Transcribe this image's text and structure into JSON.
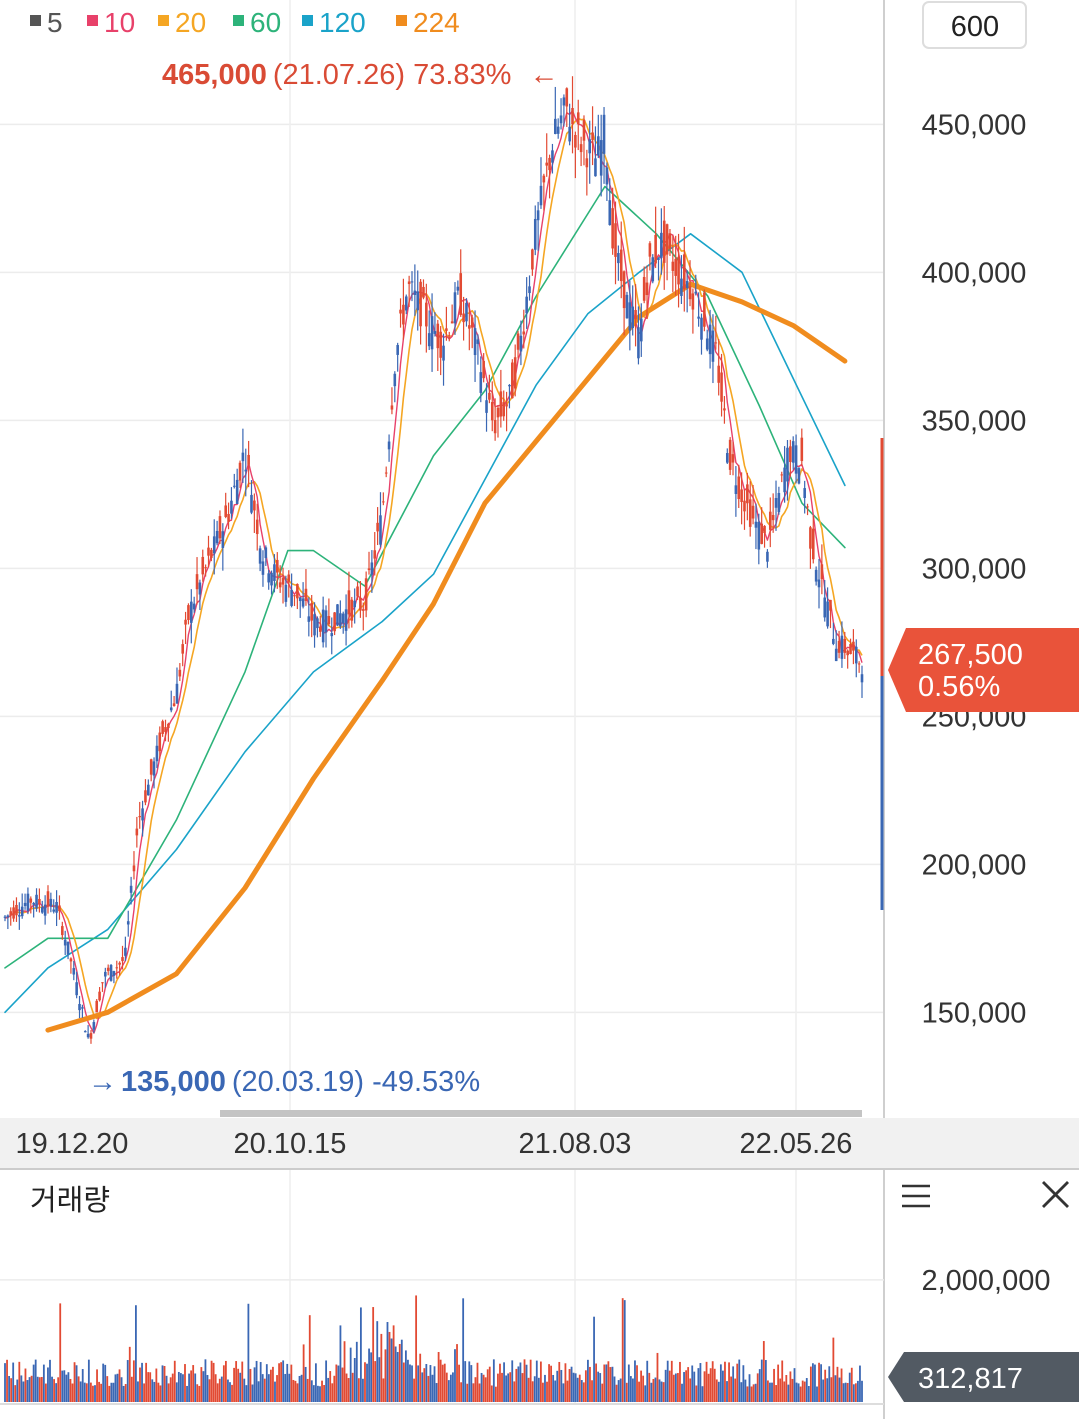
{
  "chart_data": [
    {
      "type": "candlestick",
      "legend": [
        {
          "label": "5",
          "color": "#555555"
        },
        {
          "label": "10",
          "color": "#e8416a"
        },
        {
          "label": "20",
          "color": "#f5a623"
        },
        {
          "label": "60",
          "color": "#2db37a"
        },
        {
          "label": "120",
          "color": "#1aa3c9"
        },
        {
          "label": "224",
          "color": "#f08c1e"
        }
      ],
      "period_box": "600",
      "y_ticks": [
        "450,000",
        "400,000",
        "350,000",
        "300,000",
        "250,000",
        "200,000",
        "150,000"
      ],
      "y_tick_values": [
        450000,
        400000,
        350000,
        300000,
        250000,
        200000,
        150000
      ],
      "ylim": [
        117000,
        492000
      ],
      "x_ticks": [
        "19.12.20",
        "20.10.15",
        "21.08.03",
        "22.05.26"
      ],
      "high_annotation": {
        "price": "465,000",
        "detail": "(21.07.26) 73.83%",
        "arrow": "←",
        "value": 465000
      },
      "low_annotation": {
        "arrow": "→",
        "price": "135,000",
        "detail": "(20.03.19) -49.53%",
        "value": 135000
      },
      "current": {
        "price": "267,500",
        "change": "0.56%",
        "value": 267500
      },
      "ma224_points": [
        [
          0.05,
          144000
        ],
        [
          0.12,
          150000
        ],
        [
          0.2,
          163000
        ],
        [
          0.28,
          192000
        ],
        [
          0.36,
          229000
        ],
        [
          0.44,
          262000
        ],
        [
          0.5,
          288000
        ],
        [
          0.56,
          322000
        ],
        [
          0.62,
          343000
        ],
        [
          0.68,
          364000
        ],
        [
          0.74,
          385000
        ],
        [
          0.8,
          396000
        ],
        [
          0.86,
          390000
        ],
        [
          0.92,
          382000
        ],
        [
          0.98,
          370000
        ]
      ],
      "ma120_points": [
        [
          0.0,
          150000
        ],
        [
          0.05,
          165000
        ],
        [
          0.12,
          178000
        ],
        [
          0.2,
          205000
        ],
        [
          0.28,
          238000
        ],
        [
          0.36,
          265000
        ],
        [
          0.44,
          282000
        ],
        [
          0.5,
          298000
        ],
        [
          0.56,
          330000
        ],
        [
          0.62,
          362000
        ],
        [
          0.68,
          386000
        ],
        [
          0.74,
          400000
        ],
        [
          0.8,
          413000
        ],
        [
          0.86,
          400000
        ],
        [
          0.92,
          364000
        ],
        [
          0.98,
          328000
        ]
      ],
      "ma60_points": [
        [
          0.0,
          165000
        ],
        [
          0.05,
          175000
        ],
        [
          0.12,
          175000
        ],
        [
          0.2,
          215000
        ],
        [
          0.28,
          265000
        ],
        [
          0.33,
          306000
        ],
        [
          0.36,
          306000
        ],
        [
          0.42,
          294000
        ],
        [
          0.5,
          338000
        ],
        [
          0.56,
          360000
        ],
        [
          0.62,
          392000
        ],
        [
          0.7,
          429000
        ],
        [
          0.76,
          413000
        ],
        [
          0.82,
          392000
        ],
        [
          0.88,
          355000
        ],
        [
          0.93,
          322000
        ],
        [
          0.98,
          307000
        ]
      ]
    },
    {
      "type": "bar",
      "title": "거래량",
      "y_ticks": [
        "2,000,000"
      ],
      "y_tick_values": [
        2000000
      ],
      "ylim": [
        0,
        2900000
      ],
      "current": {
        "label": "312,817",
        "value": 312817
      }
    }
  ]
}
